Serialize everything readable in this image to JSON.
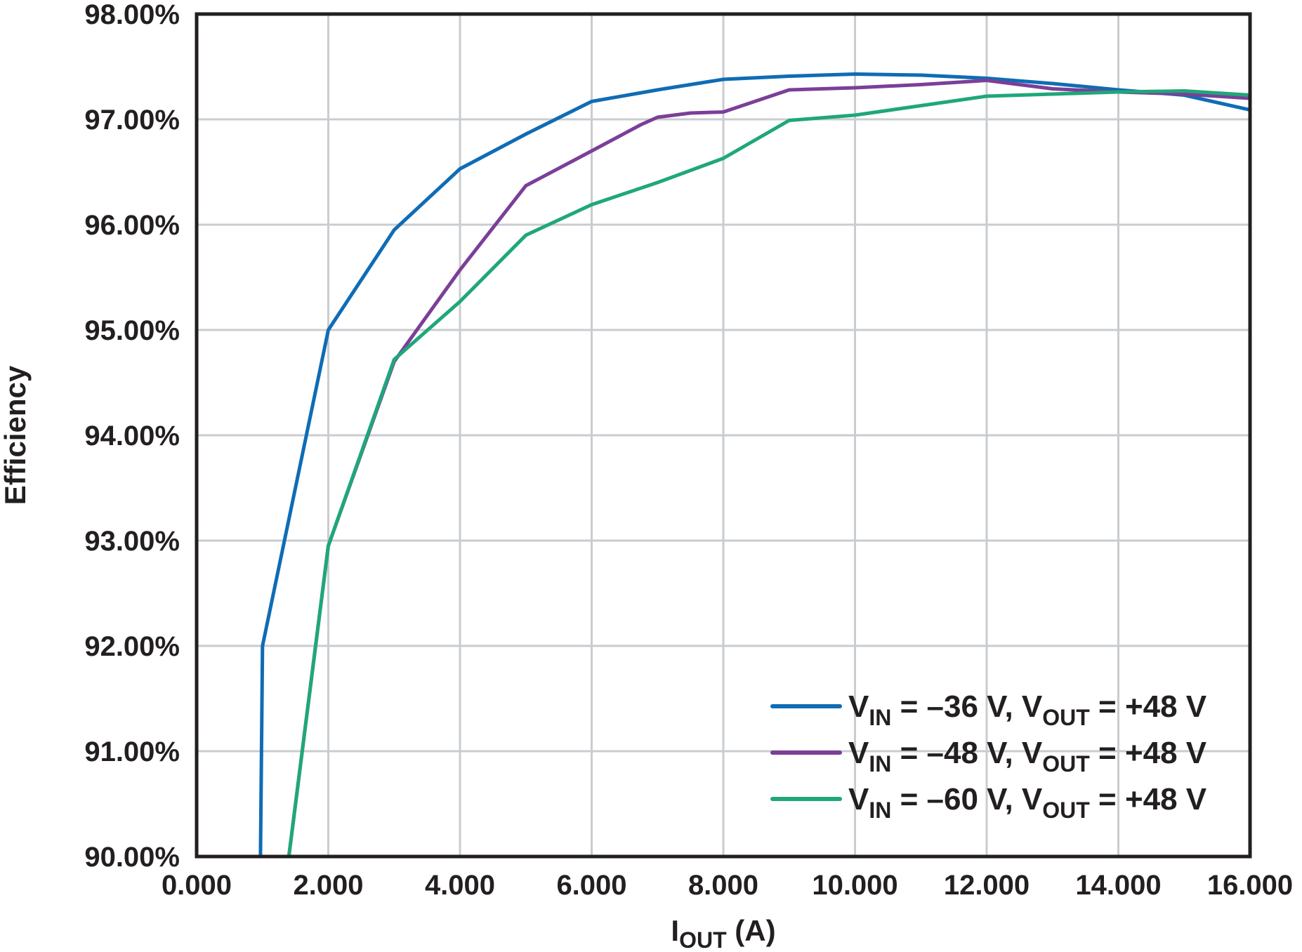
{
  "chart_data": {
    "type": "line",
    "title": "",
    "xlabel": "I",
    "xlabel_sub": "OUT",
    "xlabel_suffix": " (A)",
    "ylabel": "Efficiency",
    "xlim": [
      0,
      16
    ],
    "ylim": [
      90,
      98
    ],
    "x_ticks": [
      0,
      2,
      4,
      6,
      8,
      10,
      12,
      14,
      16
    ],
    "x_tick_labels": [
      "0.000",
      "2.000",
      "4.000",
      "6.000",
      "8.000",
      "10.000",
      "12.000",
      "14.000",
      "16.000"
    ],
    "y_ticks": [
      90,
      91,
      92,
      93,
      94,
      95,
      96,
      97,
      98
    ],
    "y_tick_labels": [
      "90.00%",
      "91.00%",
      "92.00%",
      "93.00%",
      "94.00%",
      "95.00%",
      "96.00%",
      "97.00%",
      "98.00%"
    ],
    "grid": true,
    "legend_position": "bottom-right",
    "series": [
      {
        "name": "VIN = –36 V, VOUT = +48 V",
        "legend": {
          "p1": "V",
          "s1": "IN",
          "p2": " = –36 V, V",
          "s2": "OUT",
          "p3": " = +48 V"
        },
        "color": "#0f6cb5",
        "points": [
          [
            0.97,
            90.0
          ],
          [
            1.0,
            92.0
          ],
          [
            2.0,
            95.0
          ],
          [
            3.0,
            95.95
          ],
          [
            4.0,
            96.53
          ],
          [
            5.0,
            96.86
          ],
          [
            6.0,
            97.17
          ],
          [
            7.0,
            97.28
          ],
          [
            8.0,
            97.38
          ],
          [
            9.0,
            97.41
          ],
          [
            10.0,
            97.43
          ],
          [
            11.0,
            97.42
          ],
          [
            12.0,
            97.39
          ],
          [
            13.0,
            97.34
          ],
          [
            14.0,
            97.28
          ],
          [
            15.0,
            97.23
          ],
          [
            16.0,
            97.09
          ]
        ]
      },
      {
        "name": "VIN = –48 V, VOUT = +48 V",
        "legend": {
          "p1": "V",
          "s1": "IN",
          "p2": " = –48 V, V",
          "s2": "OUT",
          "p3": " = +48 V"
        },
        "color": "#7b3f98",
        "points": [
          [
            1.4,
            90.0
          ],
          [
            2.0,
            92.95
          ],
          [
            3.0,
            94.7
          ],
          [
            4.0,
            95.57
          ],
          [
            5.0,
            96.37
          ],
          [
            6.0,
            96.7
          ],
          [
            6.75,
            96.95
          ],
          [
            7.0,
            97.02
          ],
          [
            7.5,
            97.06
          ],
          [
            8.0,
            97.07
          ],
          [
            9.0,
            97.28
          ],
          [
            10.0,
            97.3
          ],
          [
            11.0,
            97.33
          ],
          [
            12.0,
            97.37
          ],
          [
            13.0,
            97.29
          ],
          [
            14.0,
            97.26
          ],
          [
            15.0,
            97.24
          ],
          [
            16.0,
            97.2
          ]
        ]
      },
      {
        "name": "VIN = –60 V, VOUT = +48 V",
        "legend": {
          "p1": "V",
          "s1": "IN",
          "p2": " = –60 V, V",
          "s2": "OUT",
          "p3": " = +48 V"
        },
        "color": "#1fa77a",
        "points": [
          [
            1.4,
            90.0
          ],
          [
            2.0,
            92.95
          ],
          [
            3.0,
            94.72
          ],
          [
            4.0,
            95.27
          ],
          [
            5.0,
            95.9
          ],
          [
            6.0,
            96.19
          ],
          [
            7.0,
            96.4
          ],
          [
            8.0,
            96.63
          ],
          [
            9.0,
            96.99
          ],
          [
            10.0,
            97.04
          ],
          [
            11.0,
            97.13
          ],
          [
            12.0,
            97.22
          ],
          [
            13.0,
            97.24
          ],
          [
            14.0,
            97.26
          ],
          [
            15.0,
            97.27
          ],
          [
            16.0,
            97.23
          ]
        ]
      }
    ]
  }
}
